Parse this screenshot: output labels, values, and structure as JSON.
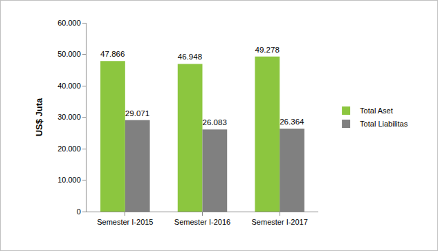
{
  "chart_data": {
    "type": "bar",
    "categories": [
      "Semester I-2015",
      "Semester I-2016",
      "Semester I-2017"
    ],
    "series": [
      {
        "name": "Total Aset",
        "color": "#8cc63f",
        "values": [
          47866,
          46948,
          49278
        ],
        "value_labels": [
          "47.866",
          "46.948",
          "49.278"
        ]
      },
      {
        "name": "Total Liabilitas",
        "color": "#808080",
        "values": [
          29071,
          26083,
          26364
        ],
        "value_labels": [
          "29.071",
          "26.083",
          "26.364"
        ]
      }
    ],
    "y_label": "US$ Juta",
    "ylim": [
      0,
      60000
    ],
    "yticks": [
      0,
      {
        "value": 10000,
        "label": "10.000"
      },
      {
        "value": 20000,
        "label": "20.000"
      },
      {
        "value": 30000,
        "label": "30.000"
      },
      {
        "value": 40000,
        "label": "40.000"
      },
      {
        "value": 50000,
        "label": "50.000"
      },
      {
        "value": 60000,
        "label": "60.000"
      }
    ],
    "grid": false,
    "legend": "right",
    "data_labels": true
  }
}
